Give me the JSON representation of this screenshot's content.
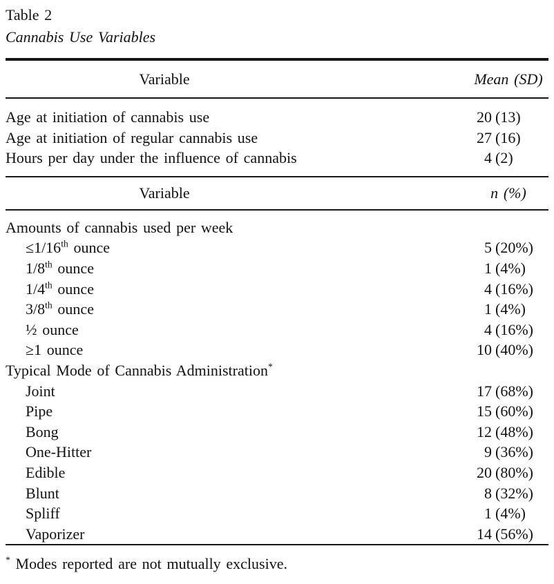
{
  "caption": {
    "label": "Table 2",
    "title": "Cannabis Use Variables"
  },
  "sections": [
    {
      "header": {
        "variable": "Variable",
        "value": "Mean (SD)"
      },
      "rows": [
        {
          "pre": "Age at initiation of cannabis use",
          "num": "20",
          "paren": "(13)"
        },
        {
          "pre": "Age at initiation of regular cannabis use",
          "num": "27",
          "paren": "(16)"
        },
        {
          "pre": "Hours per day under the influence of cannabis",
          "num": "4",
          "paren": "(2)"
        }
      ]
    },
    {
      "header": {
        "variable": "Variable",
        "value": "n (%)"
      },
      "rows": [
        {
          "pre": "Amounts of cannabis used per week"
        },
        {
          "pre": "≤1/16",
          "sup": "th",
          "post": " ounce",
          "num": "5",
          "paren": "(20%)"
        },
        {
          "pre": "1/8",
          "sup": "th",
          "post": " ounce",
          "num": "1",
          "paren": "(4%)"
        },
        {
          "pre": "1/4",
          "sup": "th",
          "post": " ounce",
          "num": "4",
          "paren": "(16%)"
        },
        {
          "pre": "3/8",
          "sup": "th",
          "post": " ounce",
          "num": "1",
          "paren": "(4%)"
        },
        {
          "pre": "½ ounce",
          "num": "4",
          "paren": "(16%)"
        },
        {
          "pre": "≥1 ounce",
          "num": "10",
          "paren": "(40%)"
        },
        {
          "pre": "Typical Mode of Cannabis Administration",
          "sup": "*"
        },
        {
          "pre": "Joint",
          "num": "17",
          "paren": "(68%)"
        },
        {
          "pre": "Pipe",
          "num": "15",
          "paren": "(60%)"
        },
        {
          "pre": "Bong",
          "num": "12",
          "paren": "(48%)"
        },
        {
          "pre": "One-Hitter",
          "num": "9",
          "paren": "(36%)"
        },
        {
          "pre": "Edible",
          "num": "20",
          "paren": "(80%)"
        },
        {
          "pre": "Blunt",
          "num": "8",
          "paren": "(32%)"
        },
        {
          "pre": "Spliff",
          "num": "1",
          "paren": "(4%)"
        },
        {
          "pre": "Vaporizer",
          "num": "14",
          "paren": "(56%)"
        }
      ]
    }
  ],
  "footnote": {
    "marker": "*",
    "text": "Modes reported are not mutually exclusive."
  }
}
